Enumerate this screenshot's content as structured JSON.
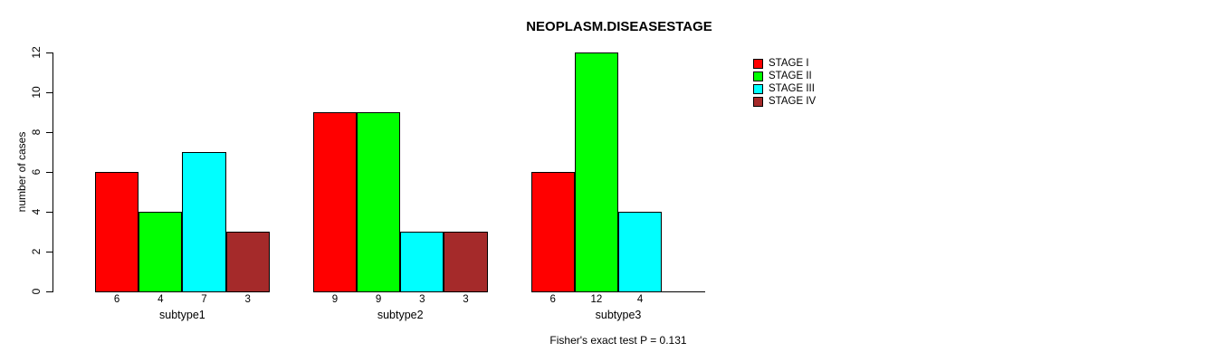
{
  "chart_data": {
    "type": "bar",
    "title": "NEOPLASM.DISEASESTAGE",
    "xlabel": "",
    "ylabel": "number of cases",
    "categories": [
      "subtype1",
      "subtype2",
      "subtype3"
    ],
    "series": [
      {
        "name": "STAGE I",
        "color": "#FF0000",
        "values": [
          6,
          9,
          6
        ]
      },
      {
        "name": "STAGE II",
        "color": "#00FF00",
        "values": [
          4,
          9,
          12
        ]
      },
      {
        "name": "STAGE III",
        "color": "#00FFFF",
        "values": [
          7,
          3,
          4
        ]
      },
      {
        "name": "STAGE IV",
        "color": "#A52A2A",
        "values": [
          3,
          3,
          0
        ]
      }
    ],
    "yticks": [
      0,
      2,
      4,
      6,
      8,
      10,
      12
    ],
    "ylim": [
      0,
      12
    ],
    "bar_labels": true,
    "grid": false,
    "legend_position": "right",
    "annotation": "Fisher's exact test P = 0.131"
  }
}
